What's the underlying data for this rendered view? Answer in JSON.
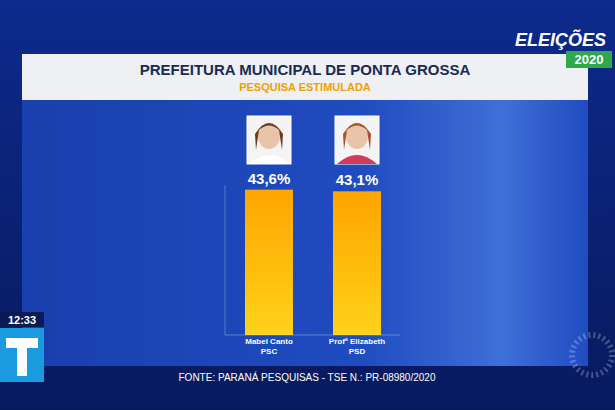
{
  "chart_data": {
    "type": "bar",
    "title": "PREFEITURA MUNICIPAL DE PONTA GROSSA",
    "subtitle": "PESQUISA ESTIMULADA",
    "categories": [
      "Mabel Canto",
      "Profª Elizabeth"
    ],
    "parties": [
      "PSC",
      "PSD"
    ],
    "values": [
      43.6,
      43.1
    ],
    "value_labels": [
      "43,6%",
      "43,1%"
    ],
    "color": "#ffa500",
    "ylim": [
      0,
      45
    ],
    "yticks": [],
    "tick_labels": false,
    "grid": false,
    "data_labels": true,
    "source": "FONTE: PARANÁ PESQUISAS - TSE N.: PR-08980/2020",
    "brand": "ELEIÇÕES",
    "year": "2020",
    "clock": "12:33"
  }
}
